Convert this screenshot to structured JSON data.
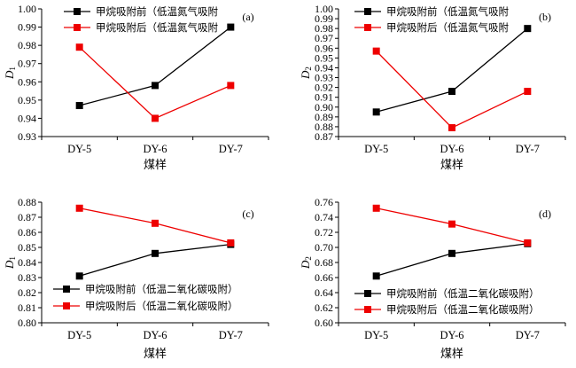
{
  "colors": {
    "before": "#000000",
    "after": "#ee0000"
  },
  "chart_data": [
    {
      "panel": "(a)",
      "type": "line",
      "categories": [
        "DY-5",
        "DY-6",
        "DY-7"
      ],
      "xlabel": "煤样",
      "ylabel_base": "D",
      "ylabel_sub": "1",
      "ylim": [
        0.93,
        1.0
      ],
      "yticks": [
        "0.93",
        "0.94",
        "0.95",
        "0.96",
        "0.97",
        "0.98",
        "0.99",
        "1.00"
      ],
      "legend_position": "top-left",
      "series": [
        {
          "name": "甲烷吸附前（低温氮气吸附",
          "values": [
            0.947,
            0.958,
            0.99
          ]
        },
        {
          "name": "甲烷吸附后（低温氮气吸附",
          "values": [
            0.979,
            0.94,
            0.958
          ]
        }
      ]
    },
    {
      "panel": "(b)",
      "type": "line",
      "categories": [
        "DY-5",
        "DY-6",
        "DY-7"
      ],
      "xlabel": "煤样",
      "ylabel_base": "D",
      "ylabel_sub": "2",
      "ylim": [
        0.87,
        1.0
      ],
      "yticks": [
        "0.87",
        "0.88",
        "0.89",
        "0.90",
        "0.91",
        "0.92",
        "0.93",
        "0.94",
        "0.95",
        "0.96",
        "0.97",
        "0.98",
        "0.99",
        "1.00"
      ],
      "legend_position": "top-left",
      "series": [
        {
          "name": "甲烷吸附前（低温氮气吸附",
          "values": [
            0.895,
            0.916,
            0.98
          ]
        },
        {
          "name": "甲烷吸附后（低温氮气吸附",
          "values": [
            0.957,
            0.879,
            0.916
          ]
        }
      ]
    },
    {
      "panel": "(c)",
      "type": "line",
      "categories": [
        "DY-5",
        "DY-6",
        "DY-7"
      ],
      "xlabel": "煤样",
      "ylabel_base": "D",
      "ylabel_sub": "1",
      "ylim": [
        0.8,
        0.88
      ],
      "yticks": [
        "0.80",
        "0.81",
        "0.82",
        "0.83",
        "0.84",
        "0.85",
        "0.86",
        "0.87",
        "0.88"
      ],
      "legend_position": "bottom-left",
      "series": [
        {
          "name": "甲烷吸附前（低温二氧化碳吸附）",
          "values": [
            0.831,
            0.846,
            0.852
          ]
        },
        {
          "name": "甲烷吸附后（低温二氧化碳吸附）",
          "values": [
            0.876,
            0.866,
            0.853
          ]
        }
      ]
    },
    {
      "panel": "(d)",
      "type": "line",
      "categories": [
        "DY-5",
        "DY-6",
        "DY-7"
      ],
      "xlabel": "煤样",
      "ylabel_base": "D",
      "ylabel_sub": "2",
      "ylim": [
        0.6,
        0.76
      ],
      "yticks": [
        "0.60",
        "0.62",
        "0.64",
        "0.66",
        "0.68",
        "0.70",
        "0.72",
        "0.74",
        "0.76"
      ],
      "legend_position": "bottom-left",
      "series": [
        {
          "name": "甲烷吸附前（低温二氧化碳吸附）",
          "values": [
            0.662,
            0.692,
            0.705
          ]
        },
        {
          "name": "甲烷吸附后（低温二氧化碳吸附）",
          "values": [
            0.752,
            0.731,
            0.706
          ]
        }
      ]
    }
  ]
}
